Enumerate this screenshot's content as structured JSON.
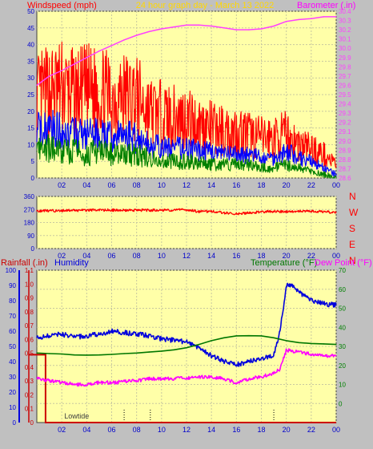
{
  "header": {
    "left_title": "Windspeed (mph)",
    "center_title": "24 hour graph day - March 13 2022",
    "right_title": "Barometer (.in)"
  },
  "colors": {
    "plot_bg": "#ffffa8",
    "frame_bg": "#c0c0c0",
    "grid": "#c8c8a0",
    "gust": "#ff0000",
    "avg_wind": "#0000ff",
    "min_wind": "#008000",
    "barometer": "#ff40ff",
    "direction": "#ff0000",
    "rainfall": "#cc0000",
    "humidity": "#0000dd",
    "temperature": "#007700",
    "dew_point": "#ff00ff",
    "title_center": "#ffd700",
    "tick_label": "#0000cc"
  },
  "chart_data": [
    {
      "type": "line",
      "title": "24 hour graph day - March 13 2022",
      "xlabel": "",
      "ylabel": "Windspeed (mph)",
      "y2label": "Barometer (.in)",
      "x_ticks": [
        "02",
        "04",
        "06",
        "08",
        "10",
        "12",
        "14",
        "16",
        "18",
        "20",
        "22",
        "00"
      ],
      "xlim": [
        0,
        24
      ],
      "ylim": [
        0,
        50
      ],
      "y_ticks": [
        0,
        5,
        10,
        15,
        20,
        25,
        30,
        35,
        40,
        45,
        50
      ],
      "y2lim": [
        28.6,
        30.4
      ],
      "y2_ticks": [
        28.6,
        28.7,
        28.8,
        28.9,
        29.0,
        29.1,
        29.2,
        29.3,
        29.4,
        29.5,
        29.6,
        29.7,
        29.8,
        29.9,
        30.0,
        30.1,
        30.2,
        30.3,
        30.4
      ],
      "grid": true,
      "series": [
        {
          "key": "gust",
          "axis": "y",
          "style": "noisy",
          "x": [
            0,
            1,
            2,
            3,
            4,
            5,
            6,
            7,
            8,
            9,
            10,
            11,
            12,
            13,
            14,
            15,
            16,
            17,
            18,
            19,
            20,
            21,
            22,
            23,
            24
          ],
          "values": [
            24,
            26,
            27,
            25,
            26,
            26,
            24,
            25,
            24,
            20,
            19,
            18,
            18,
            16,
            15,
            14,
            14,
            13,
            12,
            12,
            13,
            10,
            9,
            7,
            4
          ]
        },
        {
          "key": "avg_wind",
          "axis": "y",
          "style": "noisy",
          "x": [
            0,
            1,
            2,
            3,
            4,
            5,
            6,
            7,
            8,
            9,
            10,
            11,
            12,
            13,
            14,
            15,
            16,
            17,
            18,
            19,
            20,
            21,
            22,
            23,
            24
          ],
          "values": [
            14,
            15,
            14,
            13,
            13,
            13,
            12,
            13,
            12,
            10,
            9,
            9,
            9,
            8,
            8,
            7,
            7,
            7,
            6,
            6,
            8,
            6,
            5,
            3,
            1
          ]
        },
        {
          "key": "min_wind",
          "axis": "y",
          "style": "noisy",
          "x": [
            0,
            1,
            2,
            3,
            4,
            5,
            6,
            7,
            8,
            9,
            10,
            11,
            12,
            13,
            14,
            15,
            16,
            17,
            18,
            19,
            20,
            21,
            22,
            23,
            24
          ],
          "values": [
            8,
            9,
            8,
            8,
            7,
            8,
            7,
            7,
            7,
            6,
            5,
            5,
            5,
            5,
            4,
            4,
            4,
            4,
            3,
            3,
            4,
            3,
            2,
            1,
            0
          ]
        },
        {
          "key": "barometer",
          "axis": "y2",
          "style": "smooth",
          "x": [
            0,
            1,
            2,
            3,
            4,
            5,
            6,
            7,
            8,
            9,
            10,
            11,
            12,
            13,
            14,
            15,
            16,
            17,
            18,
            19,
            20,
            21,
            22,
            23,
            24
          ],
          "values": [
            29.6,
            29.7,
            29.76,
            29.83,
            29.9,
            29.97,
            30.03,
            30.09,
            30.14,
            30.18,
            30.21,
            30.23,
            30.25,
            30.25,
            30.24,
            30.22,
            30.2,
            30.2,
            30.21,
            30.24,
            30.29,
            30.31,
            30.32,
            30.34,
            30.34
          ]
        }
      ]
    },
    {
      "type": "line",
      "title": "",
      "ylabel": "",
      "x_ticks": [
        "02",
        "04",
        "06",
        "08",
        "10",
        "12",
        "14",
        "16",
        "18",
        "20",
        "22",
        "00"
      ],
      "xlim": [
        0,
        24
      ],
      "ylim": [
        0,
        360
      ],
      "y_ticks": [
        0,
        90,
        180,
        270,
        360
      ],
      "compass_labels": [
        "N",
        "W",
        "S",
        "E",
        "N"
      ],
      "grid": true,
      "series": [
        {
          "key": "direction",
          "style": "noisy",
          "x": [
            0,
            2,
            4,
            6,
            8,
            10,
            12,
            13,
            14,
            15,
            16,
            17,
            18,
            20,
            22,
            24
          ],
          "values": [
            260,
            262,
            265,
            265,
            265,
            265,
            268,
            255,
            258,
            248,
            240,
            245,
            255,
            255,
            258,
            250
          ]
        }
      ]
    },
    {
      "type": "line",
      "title": "",
      "y_left_labels": [
        "Rainfall (.in)",
        "Humidity"
      ],
      "y_right_labels": [
        "Temperature (°F)",
        "Dew Point (°F)"
      ],
      "x_ticks": [
        "02",
        "04",
        "06",
        "08",
        "10",
        "12",
        "14",
        "16",
        "18",
        "20",
        "22",
        "00"
      ],
      "xlim": [
        0,
        24
      ],
      "rain_lim": [
        0,
        1.1
      ],
      "rain_ticks": [
        0,
        0.1,
        0.2,
        0.3,
        0.4,
        0.5,
        0.6,
        0.7,
        0.8,
        0.9,
        1.0,
        1.1
      ],
      "humidity_lim": [
        0,
        100
      ],
      "humidity_ticks": [
        0,
        10,
        20,
        30,
        40,
        50,
        60,
        70,
        80,
        90,
        100
      ],
      "temp_lim": [
        -10,
        70
      ],
      "temp_ticks": [
        0,
        10,
        20,
        30,
        40,
        50,
        60,
        70
      ],
      "annotations": [
        {
          "text": "Lowtide",
          "x": 2.2
        },
        {
          "marker": "tide",
          "x": 7.0
        },
        {
          "marker": "tide",
          "x": 9.1
        },
        {
          "marker": "tide",
          "x": 19.0
        }
      ],
      "grid": true,
      "series": [
        {
          "key": "rainfall",
          "axis": "rain",
          "x": [
            -1,
            0.7,
            0.7,
            24
          ],
          "values": [
            0.49,
            0.49,
            0,
            0
          ]
        },
        {
          "key": "humidity",
          "axis": "humidity",
          "style": "noisy",
          "x": [
            0,
            1,
            2,
            3,
            4,
            5,
            6,
            7,
            8,
            9,
            10,
            11,
            12,
            13,
            14,
            15,
            16,
            17,
            18,
            19,
            19.5,
            20,
            20.5,
            21,
            22,
            23,
            24
          ],
          "values": [
            56,
            57,
            58,
            56,
            57,
            58,
            60,
            59,
            58,
            57,
            55,
            54,
            53,
            49,
            44,
            40,
            38,
            40,
            42,
            44,
            60,
            90,
            90,
            86,
            80,
            78,
            77
          ]
        },
        {
          "key": "temperature",
          "axis": "temp",
          "style": "smooth",
          "x": [
            0,
            1,
            2,
            3,
            4,
            5,
            6,
            7,
            8,
            9,
            10,
            11,
            12,
            13,
            14,
            15,
            16,
            17,
            18,
            19,
            20,
            21,
            22,
            23,
            24
          ],
          "values": [
            26.5,
            26.2,
            26,
            25.5,
            25.4,
            25.5,
            25.8,
            26.2,
            26.5,
            27,
            27.5,
            28.2,
            29.3,
            31,
            33,
            34.5,
            35.5,
            35.6,
            35.5,
            34.5,
            33,
            32,
            31.5,
            31.3,
            31
          ]
        },
        {
          "key": "dew_point",
          "axis": "temp",
          "style": "noisy",
          "x": [
            0,
            1,
            2,
            3,
            4,
            5,
            6,
            7,
            8,
            9,
            10,
            11,
            12,
            13,
            14,
            15,
            16,
            17,
            18,
            19,
            19.5,
            20,
            21,
            22,
            23,
            24
          ],
          "values": [
            13,
            12,
            11,
            10,
            10,
            11,
            11,
            11.5,
            12,
            13,
            13,
            13,
            13.5,
            14,
            14,
            13,
            11,
            13,
            14,
            16,
            18,
            28,
            27,
            26,
            25,
            25
          ]
        }
      ]
    }
  ]
}
